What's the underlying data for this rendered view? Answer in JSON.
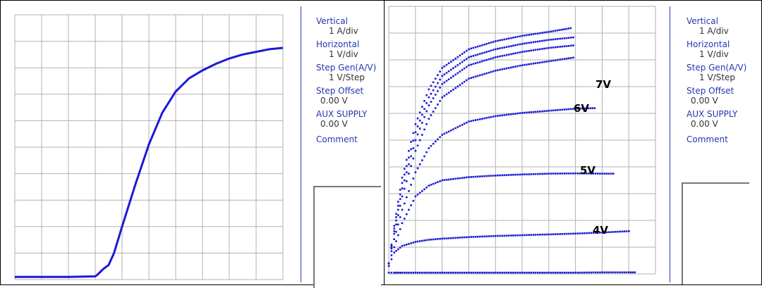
{
  "panels": [
    {
      "info": {
        "vertical_label": "Vertical",
        "vertical_value": "1 A/div",
        "horizontal_label": "Horizontal",
        "horizontal_value": "1 V/div",
        "step_gen_label": "Step Gen(A/V)",
        "step_gen_value": "1 V/Step",
        "step_offset_label": "Step Offset",
        "step_offset_value": "0.00 V",
        "aux_label": "AUX SUPPLY",
        "aux_value": "0.00 V",
        "comment_label": "Comment"
      }
    },
    {
      "info": {
        "vertical_label": "Vertical",
        "vertical_value": "1 A/div",
        "horizontal_label": "Horizontal",
        "horizontal_value": "1 V/div",
        "step_gen_label": "Step Gen(A/V)",
        "step_gen_value": "1 V/Step",
        "step_offset_label": "Step Offset",
        "step_offset_value": "0.00 V",
        "aux_label": "AUX SUPPLY",
        "aux_value": "0.00 V",
        "comment_label": "Comment"
      }
    }
  ],
  "chart_data": [
    {
      "type": "line",
      "title": "",
      "xlabel": "",
      "ylabel": "",
      "xlim": [
        0,
        10
      ],
      "ylim": [
        0,
        10
      ],
      "grid": true,
      "series": [
        {
          "x": [
            0,
            1,
            2,
            3,
            3.1,
            3.3,
            3.5,
            3.7,
            4.0,
            4.5,
            5.0,
            5.5,
            6.0,
            6.5,
            7.0,
            7.5,
            8.0,
            8.5,
            9.0,
            9.5,
            10.0
          ],
          "y": [
            0.1,
            0.1,
            0.1,
            0.12,
            0.2,
            0.4,
            0.55,
            1.0,
            2.0,
            3.6,
            5.1,
            6.3,
            7.1,
            7.6,
            7.9,
            8.15,
            8.35,
            8.5,
            8.6,
            8.7,
            8.75
          ],
          "style": "solid"
        }
      ],
      "colors": {
        "line": "#1a1ad6",
        "grid": "#b0b0b0"
      }
    },
    {
      "type": "scatter",
      "title": "",
      "xlabel": "",
      "ylabel": "",
      "xlim": [
        0,
        10
      ],
      "ylim": [
        0,
        10
      ],
      "grid": true,
      "annotations": [
        "7V",
        "6V",
        "5V",
        "4V"
      ],
      "series": [
        {
          "x": [
            0,
            0.2,
            0.5,
            1,
            1.5,
            2,
            3,
            4,
            5,
            6,
            7,
            8,
            9,
            9.3
          ],
          "y": [
            0.05,
            0.05,
            0.05,
            0.05,
            0.05,
            0.05,
            0.05,
            0.05,
            0.05,
            0.05,
            0.05,
            0.06,
            0.06,
            0.06
          ]
        },
        {
          "x": [
            0,
            0.2,
            0.5,
            1,
            1.5,
            2,
            3,
            4,
            5,
            6,
            7,
            8,
            9,
            9.0
          ],
          "y": [
            0.3,
            0.8,
            1.05,
            1.2,
            1.28,
            1.32,
            1.38,
            1.42,
            1.45,
            1.48,
            1.51,
            1.55,
            1.6,
            1.6
          ]
        },
        {
          "x": [
            0,
            0.2,
            0.5,
            1,
            1.5,
            2,
            3,
            4,
            5,
            6,
            7,
            8,
            8.5
          ],
          "y": [
            0.4,
            1.0,
            1.9,
            2.9,
            3.3,
            3.5,
            3.62,
            3.68,
            3.72,
            3.75,
            3.76,
            3.75,
            3.75
          ]
        },
        {
          "x": [
            0,
            0.2,
            0.5,
            1,
            1.5,
            2,
            3,
            4,
            5,
            6,
            7,
            7.8
          ],
          "y": [
            0.4,
            1.3,
            2.4,
            3.8,
            4.7,
            5.2,
            5.7,
            5.9,
            6.02,
            6.1,
            6.18,
            6.2
          ]
        },
        {
          "x": [
            0,
            0.2,
            0.5,
            1,
            1.5,
            2,
            3,
            4,
            5,
            6,
            7.0
          ],
          "y": [
            0.4,
            1.5,
            2.9,
            4.6,
            5.8,
            6.6,
            7.3,
            7.6,
            7.8,
            7.95,
            8.1
          ]
        },
        {
          "x": [
            0,
            0.2,
            0.5,
            1,
            1.5,
            2,
            3,
            4,
            5,
            6,
            7.0
          ],
          "y": [
            0.4,
            1.6,
            3.2,
            5.0,
            6.3,
            7.1,
            7.8,
            8.1,
            8.3,
            8.45,
            8.55
          ]
        },
        {
          "x": [
            0,
            0.2,
            0.5,
            1,
            1.5,
            2,
            3,
            4,
            5,
            6,
            7.0
          ],
          "y": [
            0.4,
            1.7,
            3.4,
            5.3,
            6.6,
            7.4,
            8.1,
            8.4,
            8.6,
            8.75,
            8.85
          ]
        },
        {
          "x": [
            0,
            0.2,
            0.5,
            1,
            1.5,
            2,
            3,
            4,
            5,
            6,
            6.9
          ],
          "y": [
            0.4,
            1.8,
            3.6,
            5.6,
            6.9,
            7.7,
            8.4,
            8.7,
            8.9,
            9.05,
            9.2
          ]
        }
      ],
      "colors": {
        "marker": "#1a1ad6",
        "grid": "#b0b0b0"
      }
    }
  ]
}
